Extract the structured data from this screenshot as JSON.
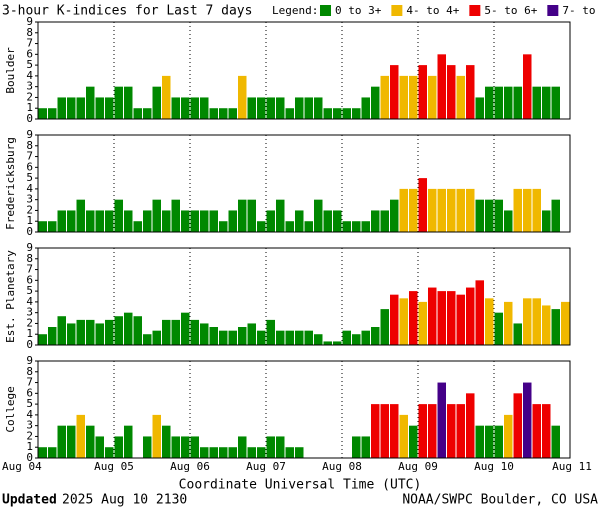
{
  "title": "3-hour K-indices for Last 7 days",
  "legend": {
    "label": "Legend:",
    "items": [
      {
        "name": "0 to 3+",
        "color": "#008800"
      },
      {
        "name": "4- to 4+",
        "color": "#f0b800"
      },
      {
        "name": "5- to 6+",
        "color": "#ee0000"
      },
      {
        "name": "7- to 9",
        "color": "#440088"
      }
    ]
  },
  "x_ticks": [
    "Aug 04",
    "Aug 05",
    "Aug 06",
    "Aug 07",
    "Aug 08",
    "Aug 09",
    "Aug 10",
    "Aug 11"
  ],
  "xlabel": "Coordinate Universal Time (UTC)",
  "footer": {
    "updated_label": "Updated",
    "updated_time": "2025 Aug 10 2130",
    "credit": "NOAA/SWPC Boulder, CO USA"
  },
  "chart_data": [
    {
      "type": "bar",
      "ylabel": "Boulder",
      "ylim": [
        0,
        9
      ],
      "yticks": [
        0,
        1,
        2,
        3,
        4,
        5,
        6,
        7,
        8,
        9
      ],
      "values": [
        1,
        1,
        2,
        2,
        2,
        3,
        2,
        2,
        3,
        3,
        1,
        1,
        3,
        4,
        2,
        2,
        2,
        2,
        1,
        1,
        1,
        4,
        2,
        2,
        2,
        2,
        1,
        2,
        2,
        2,
        1,
        1,
        1,
        1,
        2,
        3,
        4,
        5,
        4,
        4,
        5,
        4,
        6,
        5,
        4,
        5,
        2,
        3,
        3,
        3,
        3,
        6,
        3,
        3,
        3,
        0
      ]
    },
    {
      "type": "bar",
      "ylabel": "Fredericksburg",
      "ylim": [
        0,
        9
      ],
      "yticks": [
        0,
        1,
        2,
        3,
        4,
        5,
        6,
        7,
        8,
        9
      ],
      "values": [
        1,
        1,
        2,
        2,
        3,
        2,
        2,
        2,
        3,
        2,
        1,
        2,
        3,
        2,
        3,
        2,
        2,
        2,
        2,
        1,
        2,
        3,
        3,
        1,
        2,
        3,
        1,
        2,
        1,
        3,
        2,
        2,
        1,
        1,
        1,
        2,
        2,
        3,
        4,
        4,
        5,
        4,
        4,
        4,
        4,
        4,
        3,
        3,
        3,
        2,
        4,
        4,
        4,
        2,
        3,
        0
      ]
    },
    {
      "type": "bar",
      "ylabel": "Est. Planetary",
      "ylim": [
        0,
        9
      ],
      "yticks": [
        0,
        1,
        2,
        3,
        4,
        5,
        6,
        7,
        8,
        9
      ],
      "values": [
        1,
        1.67,
        2.67,
        2,
        2.33,
        2.33,
        2,
        2.33,
        2.67,
        3,
        2.67,
        1,
        1.33,
        2.33,
        2.33,
        3,
        2.33,
        2,
        1.67,
        1.33,
        1.33,
        1.67,
        2,
        1.33,
        2.33,
        1.33,
        1.33,
        1.33,
        1.33,
        1,
        0.33,
        0.33,
        1.33,
        1,
        1.33,
        1.67,
        3.33,
        4.67,
        4.33,
        5,
        4,
        5.33,
        5,
        5,
        4.67,
        5.33,
        6,
        4.33,
        3,
        4,
        2,
        4.33,
        4.33,
        3.67,
        3.33,
        4
      ]
    },
    {
      "type": "bar",
      "ylabel": "College",
      "ylim": [
        0,
        9
      ],
      "yticks": [
        0,
        1,
        2,
        3,
        4,
        5,
        6,
        7,
        8,
        9
      ],
      "values": [
        1,
        1,
        3,
        3,
        4,
        3,
        2,
        1,
        2,
        3,
        0,
        2,
        4,
        3,
        2,
        2,
        2,
        1,
        1,
        1,
        1,
        2,
        1,
        1,
        2,
        2,
        1,
        1,
        0,
        0,
        0,
        0,
        0,
        2,
        2,
        5,
        5,
        5,
        4,
        3,
        5,
        5,
        7,
        5,
        5,
        6,
        3,
        3,
        3,
        4,
        6,
        7,
        5,
        5,
        3,
        0
      ]
    }
  ]
}
